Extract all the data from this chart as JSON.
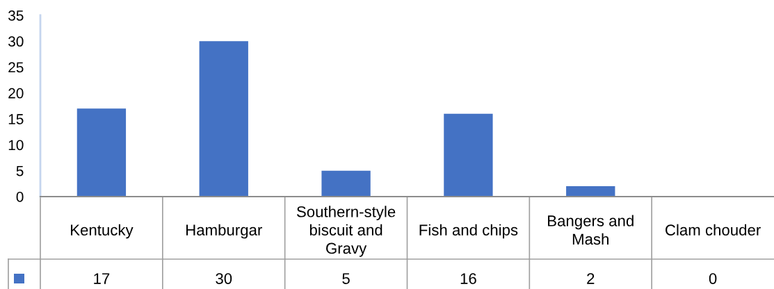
{
  "chart_data": {
    "type": "bar",
    "categories": [
      "Kentucky",
      "Hamburgar",
      "Southern-style biscuit and Gravy",
      "Fish and chips",
      "Bangers and Mash",
      "Clam chouder"
    ],
    "values": [
      17,
      30,
      5,
      16,
      2,
      0
    ],
    "color": "#4472c4",
    "ylim": [
      0,
      35
    ],
    "yticks": [
      0,
      5,
      10,
      15,
      20,
      25,
      30,
      35
    ],
    "data_labels": true
  }
}
